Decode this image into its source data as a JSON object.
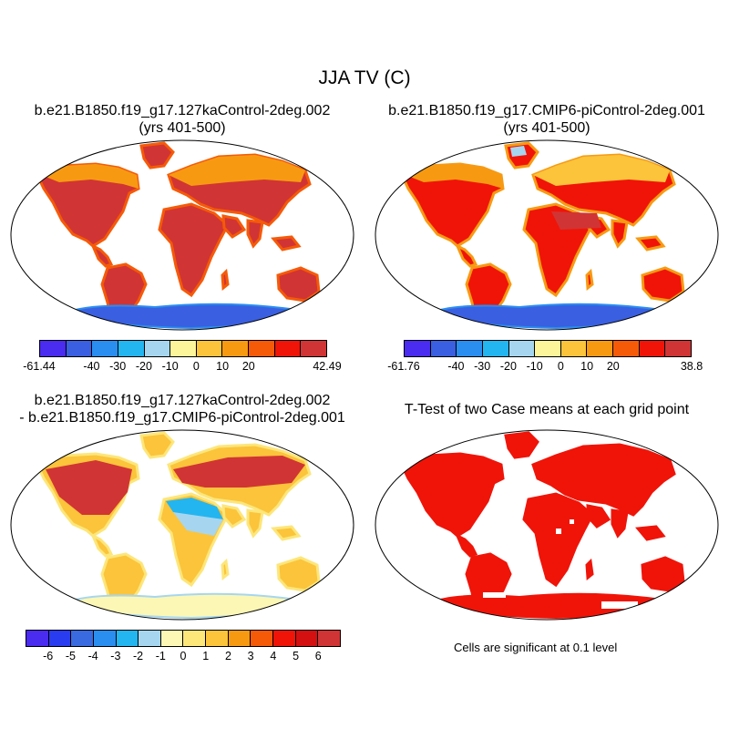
{
  "main_title": "JJA TV (C)",
  "panels": {
    "top_left": {
      "title_line1": "b.e21.B1850.f19_g17.127kaControl-2deg.002",
      "title_line2": "(yrs 401-500)",
      "colorbar": {
        "colors": [
          "#4a2bf0",
          "#3a5fe0",
          "#2a8ef0",
          "#23b5f0",
          "#a6d6ef",
          "#fcf59a",
          "#fbc43a",
          "#f79a12",
          "#f55a08",
          "#f01408",
          "#d13434"
        ],
        "labels": [
          "-61.44",
          "-40",
          "-30",
          "-20",
          "-10",
          "0",
          "10",
          "20",
          "42.49"
        ],
        "label_box_index": [
          0,
          2,
          3,
          4,
          5,
          6,
          7,
          8,
          11
        ]
      }
    },
    "top_right": {
      "title_line1": "b.e21.B1850.f19_g17.CMIP6-piControl-2deg.001",
      "title_line2": "(yrs 401-500)",
      "colorbar": {
        "colors": [
          "#4a2bf0",
          "#3a5fe0",
          "#2a8ef0",
          "#23b5f0",
          "#a6d6ef",
          "#fcf59a",
          "#fbc43a",
          "#f79a12",
          "#f55a08",
          "#f01408",
          "#d13434"
        ],
        "labels": [
          "-61.76",
          "-40",
          "-30",
          "-20",
          "-10",
          "0",
          "10",
          "20",
          "38.8"
        ],
        "label_box_index": [
          0,
          2,
          3,
          4,
          5,
          6,
          7,
          8,
          11
        ]
      }
    },
    "bottom_left": {
      "title_line1": "b.e21.B1850.f19_g17.127kaControl-2deg.002",
      "title_line2": "- b.e21.B1850.f19_g17.CMIP6-piControl-2deg.001",
      "colorbar": {
        "colors": [
          "#4a2bf0",
          "#2a3cf0",
          "#3a6ae0",
          "#2a8ef0",
          "#23b5f0",
          "#a6d6ef",
          "#fcf7b4",
          "#fde67a",
          "#fbc43a",
          "#f79a12",
          "#f55a08",
          "#f01408",
          "#d41010",
          "#d13434"
        ],
        "labels": [
          "-6",
          "-5",
          "-4",
          "-3",
          "-2",
          "-1",
          "0",
          "1",
          "2",
          "3",
          "4",
          "5",
          "6"
        ],
        "label_box_index": [
          1,
          2,
          3,
          4,
          5,
          6,
          7,
          8,
          9,
          10,
          11,
          12,
          13
        ]
      }
    },
    "bottom_right": {
      "title_line1": "T-Test of two Case means at each grid point",
      "note": "Cells are significant at 0.1 level"
    }
  }
}
